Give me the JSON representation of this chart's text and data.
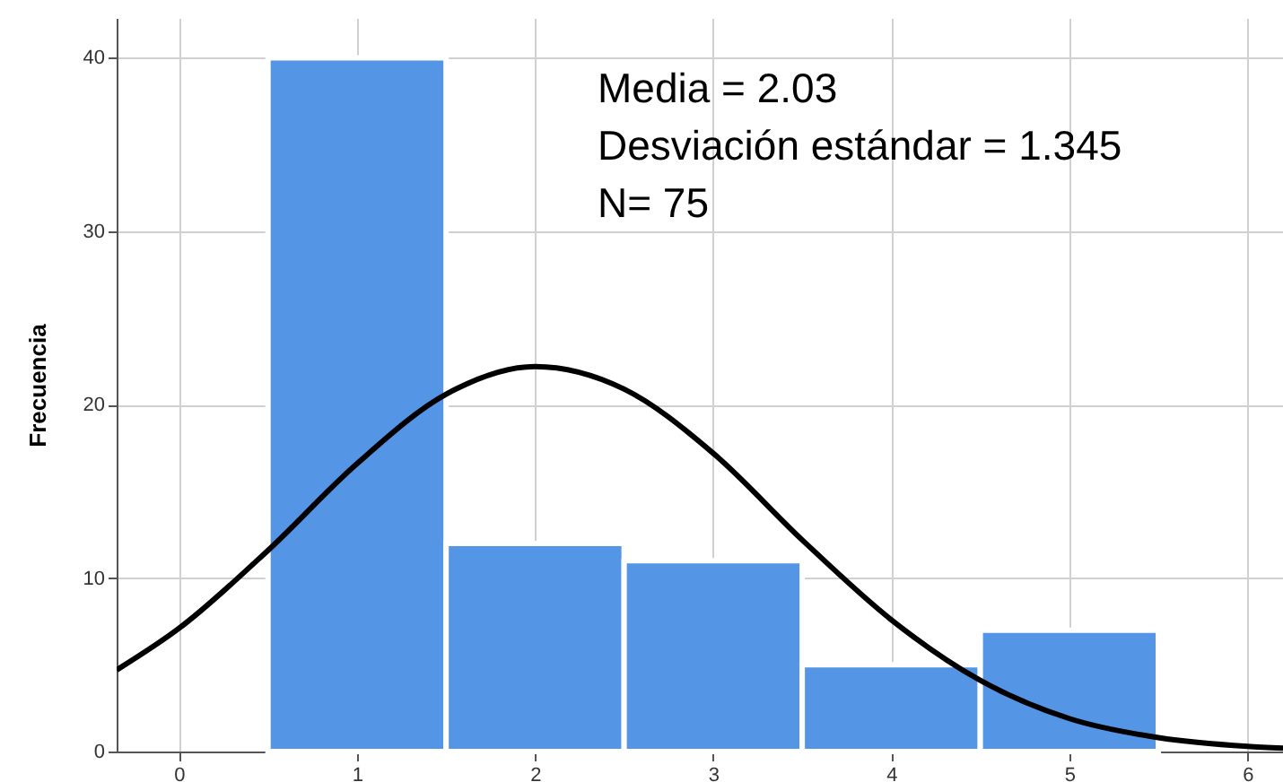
{
  "chart_data": {
    "type": "histogram",
    "ylabel": "Frecuencia",
    "bins": [
      0.5,
      1.5,
      2.5,
      3.5,
      4.5,
      5.5
    ],
    "values": [
      40,
      12,
      11,
      5,
      7
    ],
    "color": "#5595e5",
    "series": [
      {
        "type": "line",
        "color": "#000000",
        "x": [
          -0.35,
          0,
          0.5,
          1,
          1.5,
          2,
          2.5,
          3,
          3.5,
          4,
          4.5,
          5,
          5.5,
          6,
          6.2
        ],
        "values": [
          4.7,
          7.1,
          11.6,
          16.6,
          20.6,
          22.2,
          20.9,
          17.2,
          12.2,
          7.6,
          4.1,
          1.9,
          0.8,
          0.3,
          0.2
        ]
      }
    ],
    "xlim": [
      -0.35,
      6.2
    ],
    "xticks": [
      0,
      1,
      2,
      3,
      4,
      5,
      6
    ],
    "ylim": [
      0,
      42.3
    ],
    "yticks": [
      0,
      10,
      20,
      30,
      40
    ],
    "grid": true,
    "annotations": [
      "Media = 2.03",
      "Desviación estándar = 1.345",
      "N= 75"
    ]
  }
}
